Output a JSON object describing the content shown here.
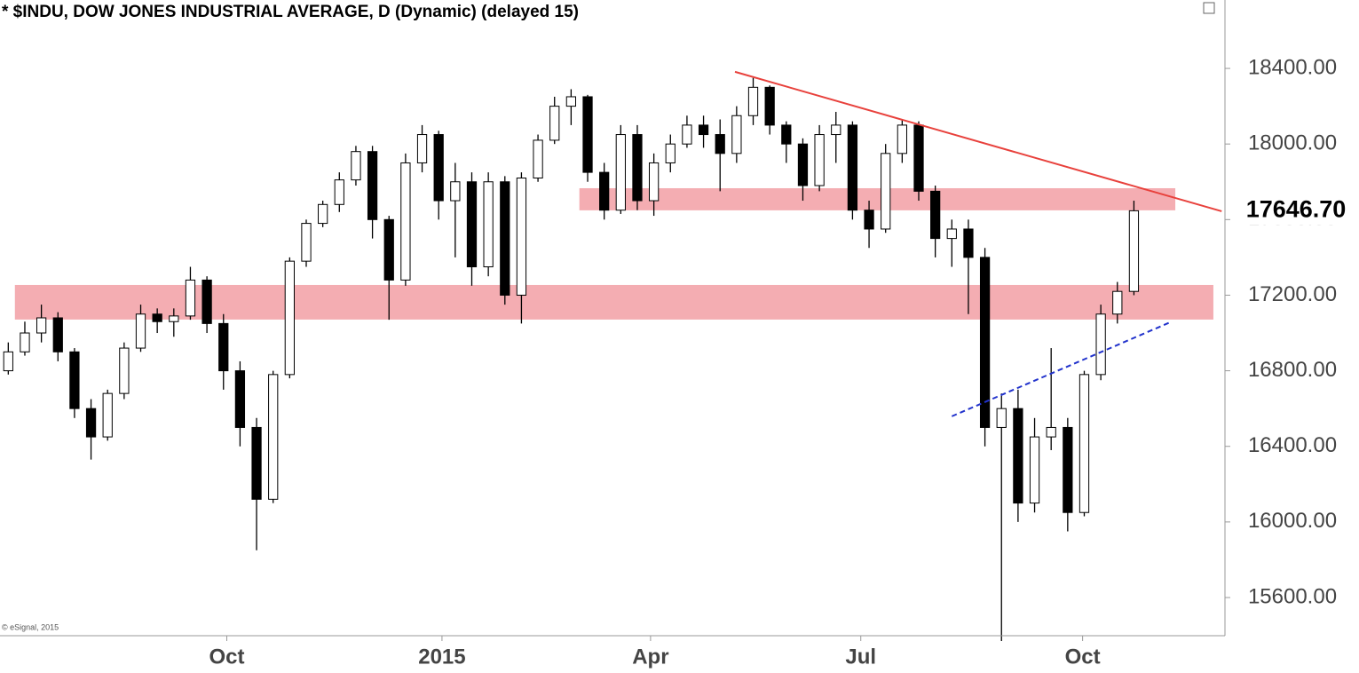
{
  "chart_data": {
    "type": "candlestick",
    "title": "* $INDU, DOW JONES INDUSTRIAL AVERAGE, D (Dynamic) (delayed 15)",
    "credit": "© eSignal, 2015",
    "x": [
      0,
      1,
      2,
      3,
      4,
      5,
      6,
      7,
      8,
      9,
      10,
      11,
      12,
      13,
      14,
      15,
      16,
      17,
      18,
      19,
      20,
      21,
      22,
      23,
      24,
      25,
      26,
      27,
      28,
      29,
      30,
      31,
      32,
      33,
      34,
      35,
      36,
      37,
      38,
      39,
      40,
      41,
      42,
      43,
      44,
      45,
      46,
      47,
      48,
      49,
      50,
      51,
      52,
      53,
      54,
      55,
      56,
      57,
      58,
      59,
      60,
      61,
      62,
      63,
      64,
      65,
      66,
      67,
      68
    ],
    "open": [
      16800,
      16900,
      17000,
      17080,
      16900,
      16600,
      16450,
      16680,
      16920,
      17100,
      17060,
      17090,
      17280,
      17050,
      16800,
      16500,
      16120,
      16780,
      17380,
      17580,
      17680,
      17810,
      17960,
      17600,
      17280,
      17900,
      18050,
      17700,
      17800,
      17350,
      17800,
      17200,
      17820,
      18020,
      18200,
      18250,
      17850,
      17650,
      18050,
      17700,
      17900,
      18000,
      18100,
      18050,
      17950,
      18150,
      18300,
      18100,
      18000,
      17780,
      18050,
      18100,
      17650,
      17550,
      17950,
      18100,
      17750,
      17500,
      17550,
      17400,
      16500,
      16600,
      16100,
      16450,
      16500,
      16050,
      16780,
      17100,
      17220
    ],
    "high": [
      16950,
      17060,
      17150,
      17110,
      16920,
      16650,
      16700,
      16950,
      17150,
      17130,
      17130,
      17350,
      17300,
      17100,
      16850,
      16550,
      16800,
      17400,
      17600,
      17700,
      17850,
      17990,
      17990,
      17620,
      17950,
      18100,
      18070,
      17900,
      17850,
      17850,
      17830,
      17850,
      18050,
      18250,
      18290,
      18260,
      17900,
      18100,
      18100,
      17950,
      18050,
      18150,
      18150,
      18130,
      18200,
      18350,
      18310,
      18120,
      18030,
      18100,
      18170,
      18120,
      17700,
      18000,
      18130,
      18120,
      17780,
      17600,
      17600,
      17450,
      16680,
      16700,
      16550,
      16920,
      16550,
      16800,
      17150,
      17270,
      17700
    ],
    "low": [
      16780,
      16880,
      16950,
      16850,
      16550,
      16330,
      16430,
      16650,
      16900,
      17000,
      16980,
      17070,
      17000,
      16700,
      16400,
      15850,
      16100,
      16760,
      17350,
      17560,
      17640,
      17780,
      17500,
      17070,
      17250,
      17850,
      17600,
      17400,
      17250,
      17300,
      17150,
      17050,
      17800,
      18000,
      18100,
      17800,
      17600,
      17630,
      17650,
      17620,
      17850,
      17980,
      17980,
      17750,
      17900,
      18100,
      18050,
      17900,
      17700,
      17750,
      17900,
      17600,
      17450,
      17530,
      17900,
      17700,
      17400,
      17350,
      17100,
      16400,
      15370,
      16000,
      16050,
      16380,
      15950,
      16030,
      16750,
      17050,
      17200
    ],
    "close": [
      16900,
      17000,
      17080,
      16900,
      16600,
      16450,
      16680,
      16920,
      17100,
      17060,
      17090,
      17280,
      17050,
      16800,
      16500,
      16120,
      16780,
      17380,
      17580,
      17680,
      17810,
      17960,
      17600,
      17280,
      17900,
      18050,
      17700,
      17800,
      17350,
      17800,
      17200,
      17820,
      18020,
      18200,
      18250,
      17850,
      17650,
      18050,
      17700,
      17900,
      18000,
      18100,
      18050,
      17950,
      18150,
      18300,
      18100,
      18000,
      17780,
      18050,
      18100,
      17650,
      17550,
      17950,
      18100,
      17750,
      17500,
      17550,
      17400,
      16500,
      16600,
      16100,
      16450,
      16500,
      16050,
      16780,
      17100,
      17220,
      17646.7
    ],
    "last_price": {
      "value": 17646.7,
      "label": "17646.70"
    },
    "up_color": "#ffffff",
    "down_color": "#000000",
    "edge_color": "#000000",
    "xlim": [
      -0.5,
      73.5
    ],
    "xticks": [
      {
        "value": 13.2,
        "label": "Oct"
      },
      {
        "value": 26.2,
        "label": "2015"
      },
      {
        "value": 38.8,
        "label": "Apr"
      },
      {
        "value": 51.5,
        "label": "Jul"
      },
      {
        "value": 64.9,
        "label": "Oct"
      }
    ],
    "ylim": [
      15398,
      18762
    ],
    "yticks": [
      {
        "value": 15600,
        "label": "15600.00"
      },
      {
        "value": 16000,
        "label": "16000.00"
      },
      {
        "value": 16400,
        "label": "16400.00"
      },
      {
        "value": 16800,
        "label": "16800.00"
      },
      {
        "value": 17200,
        "label": "17200.00"
      },
      {
        "value": 17600,
        "label": "17600.00"
      },
      {
        "value": 18000,
        "label": "18000.00"
      },
      {
        "value": 18400,
        "label": "18400.00"
      }
    ],
    "zones": [
      {
        "xmin": 34.5,
        "xmax": 70.5,
        "ymin": 17649,
        "ymax": 17766,
        "color": "#f4adb2"
      },
      {
        "xmin": 0.4,
        "xmax": 72.8,
        "ymin": 17071,
        "ymax": 17254,
        "color": "#f4adb2"
      }
    ],
    "trendlines": [
      {
        "x": [
          43.9,
          73.3
        ],
        "y": [
          18382,
          17644
        ],
        "color": "#e8413c",
        "dashed": false
      },
      {
        "x": [
          57,
          70.2
        ],
        "y": [
          16559,
          17057
        ],
        "color": "#2233cc",
        "dashed": true
      }
    ]
  }
}
